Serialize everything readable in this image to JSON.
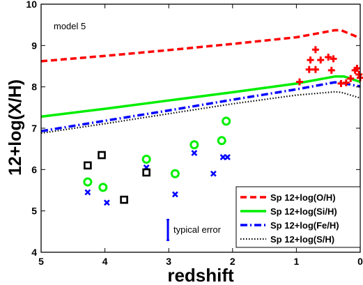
{
  "chart_data": {
    "type": "line",
    "xlabel": "redshift",
    "ylabel": "12+log(X/H)",
    "xlim": [
      5,
      0
    ],
    "ylim": [
      4,
      10
    ],
    "x_reversed": true,
    "grid": false,
    "legend_position": "bottom-right",
    "annotation": "model 5",
    "error_label": "typical error",
    "error_value": 0.5,
    "x_ticks": [
      5,
      4,
      3,
      2,
      1,
      0
    ],
    "y_ticks": [
      4,
      5,
      6,
      7,
      8,
      9,
      10
    ],
    "series": [
      {
        "name": "Sp 12+log(O/H)",
        "style": "dashed",
        "color": "#ff0000",
        "points": [
          [
            5,
            8.62
          ],
          [
            4,
            8.75
          ],
          [
            3,
            8.89
          ],
          [
            2,
            9.04
          ],
          [
            1,
            9.2
          ],
          [
            0.4,
            9.37
          ],
          [
            0.3,
            9.37
          ],
          [
            0,
            9.18
          ]
        ]
      },
      {
        "name": "Sp 12+log(Si/H)",
        "style": "solid",
        "color": "#00ee00",
        "points": [
          [
            5,
            7.28
          ],
          [
            4,
            7.47
          ],
          [
            3,
            7.67
          ],
          [
            2,
            7.87
          ],
          [
            1,
            8.08
          ],
          [
            0.4,
            8.25
          ],
          [
            0.25,
            8.25
          ],
          [
            0,
            8.12
          ]
        ]
      },
      {
        "name": "Sp 12+log(Fe/H)",
        "style": "dashdot",
        "color": "#0000ff",
        "points": [
          [
            5,
            6.93
          ],
          [
            4,
            7.18
          ],
          [
            3,
            7.43
          ],
          [
            2,
            7.69
          ],
          [
            1,
            7.94
          ],
          [
            0.4,
            8.11
          ],
          [
            0.3,
            8.1
          ],
          [
            0,
            8.01
          ]
        ]
      },
      {
        "name": "Sp 12+log(S/H)",
        "style": "dotted",
        "color": "#000000",
        "points": [
          [
            5,
            6.88
          ],
          [
            4,
            7.11
          ],
          [
            3,
            7.35
          ],
          [
            2,
            7.59
          ],
          [
            1,
            7.8
          ],
          [
            0.4,
            7.88
          ],
          [
            0.3,
            7.87
          ],
          [
            0,
            7.73
          ]
        ]
      }
    ],
    "scatter": [
      {
        "marker": "plus",
        "color": "#ff0000",
        "points": [
          [
            0.95,
            8.12
          ],
          [
            0.8,
            8.42
          ],
          [
            0.78,
            8.65
          ],
          [
            0.7,
            8.42
          ],
          [
            0.7,
            8.9
          ],
          [
            0.62,
            8.65
          ],
          [
            0.5,
            8.72
          ],
          [
            0.42,
            8.68
          ],
          [
            0.45,
            8.4
          ],
          [
            0.3,
            8.08
          ],
          [
            0.22,
            8.1
          ],
          [
            0.15,
            8.2
          ],
          [
            0.08,
            8.4
          ],
          [
            0.05,
            8.45
          ],
          [
            0.02,
            8.3
          ],
          [
            0.0,
            8.22
          ]
        ]
      },
      {
        "marker": "circle",
        "color": "#00ee00",
        "points": [
          [
            4.27,
            5.7
          ],
          [
            4.03,
            5.57
          ],
          [
            3.35,
            6.25
          ],
          [
            2.9,
            5.9
          ],
          [
            2.6,
            6.6
          ],
          [
            2.17,
            6.7
          ],
          [
            2.1,
            7.17
          ]
        ]
      },
      {
        "marker": "x",
        "color": "#0000ff",
        "points": [
          [
            4.27,
            5.45
          ],
          [
            3.97,
            5.2
          ],
          [
            3.35,
            6.05
          ],
          [
            2.9,
            5.4
          ],
          [
            2.6,
            6.4
          ],
          [
            2.3,
            5.9
          ],
          [
            2.15,
            6.3
          ],
          [
            2.08,
            6.3
          ]
        ]
      },
      {
        "marker": "square",
        "color": "#000000",
        "points": [
          [
            4.27,
            6.1
          ],
          [
            4.05,
            6.35
          ],
          [
            3.7,
            5.27
          ],
          [
            3.35,
            5.93
          ]
        ]
      }
    ]
  }
}
